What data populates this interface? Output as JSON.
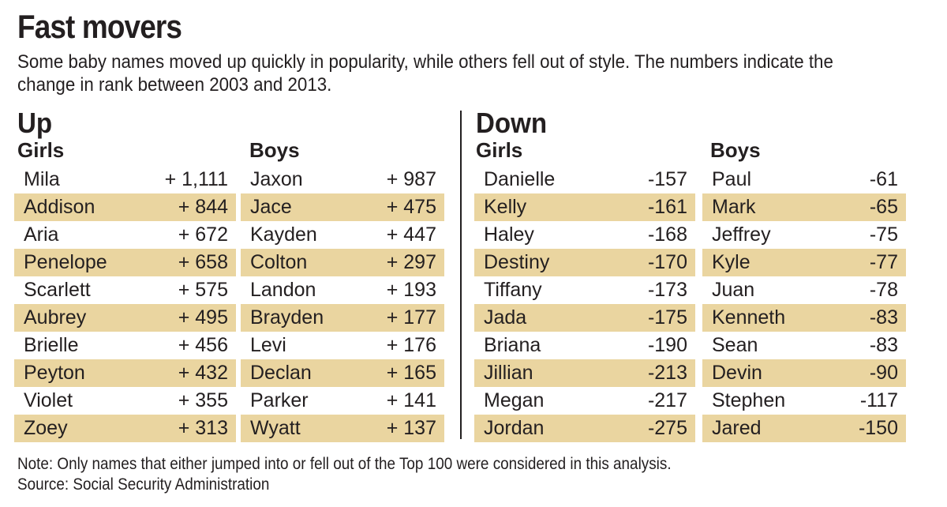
{
  "title": "Fast movers",
  "subtitle": "Some baby names moved up quickly in popularity, while others fell out of style. The numbers indicate the change in rank between 2003 and 2013.",
  "up": {
    "label": "Up",
    "girls": {
      "label": "Girls",
      "rows": [
        {
          "name": "Mila",
          "change": "+ 1,111"
        },
        {
          "name": "Addison",
          "change": "+ 844"
        },
        {
          "name": "Aria",
          "change": "+ 672"
        },
        {
          "name": "Penelope",
          "change": "+ 658"
        },
        {
          "name": "Scarlett",
          "change": "+ 575"
        },
        {
          "name": "Aubrey",
          "change": "+ 495"
        },
        {
          "name": "Brielle",
          "change": "+ 456"
        },
        {
          "name": "Peyton",
          "change": "+ 432"
        },
        {
          "name": "Violet",
          "change": "+ 355"
        },
        {
          "name": "Zoey",
          "change": "+ 313"
        }
      ]
    },
    "boys": {
      "label": "Boys",
      "rows": [
        {
          "name": "Jaxon",
          "change": "+ 987"
        },
        {
          "name": "Jace",
          "change": "+ 475"
        },
        {
          "name": "Kayden",
          "change": "+ 447"
        },
        {
          "name": "Colton",
          "change": "+ 297"
        },
        {
          "name": "Landon",
          "change": "+ 193"
        },
        {
          "name": "Brayden",
          "change": "+ 177"
        },
        {
          "name": "Levi",
          "change": "+ 176"
        },
        {
          "name": "Declan",
          "change": "+ 165"
        },
        {
          "name": "Parker",
          "change": "+ 141"
        },
        {
          "name": "Wyatt",
          "change": "+ 137"
        }
      ]
    }
  },
  "down": {
    "label": "Down",
    "girls": {
      "label": "Girls",
      "rows": [
        {
          "name": "Danielle",
          "change": "-157"
        },
        {
          "name": "Kelly",
          "change": "-161"
        },
        {
          "name": "Haley",
          "change": "-168"
        },
        {
          "name": "Destiny",
          "change": "-170"
        },
        {
          "name": "Tiffany",
          "change": "-173"
        },
        {
          "name": "Jada",
          "change": "-175"
        },
        {
          "name": "Briana",
          "change": "-190"
        },
        {
          "name": "Jillian",
          "change": "-213"
        },
        {
          "name": "Megan",
          "change": "-217"
        },
        {
          "name": "Jordan",
          "change": "-275"
        }
      ]
    },
    "boys": {
      "label": "Boys",
      "rows": [
        {
          "name": "Paul",
          "change": "-61"
        },
        {
          "name": "Mark",
          "change": "-65"
        },
        {
          "name": "Jeffrey",
          "change": "-75"
        },
        {
          "name": "Kyle",
          "change": "-77"
        },
        {
          "name": "Juan",
          "change": "-78"
        },
        {
          "name": "Kenneth",
          "change": "-83"
        },
        {
          "name": "Sean",
          "change": "-83"
        },
        {
          "name": "Devin",
          "change": "-90"
        },
        {
          "name": "Stephen",
          "change": "-117"
        },
        {
          "name": "Jared",
          "change": "-150"
        }
      ]
    }
  },
  "note": "Note: Only names that either jumped into or fell out of the Top 100 were considered in this analysis.",
  "source": "Source: Social Security Administration",
  "colors": {
    "stripe": "#ead5a0",
    "text": "#231f20"
  },
  "chart_data": {
    "type": "table",
    "title": "Fast movers",
    "subtitle": "Change in rank between 2003 and 2013",
    "columns": [
      "Up - Girls",
      "Up - Boys",
      "Down - Girls",
      "Down - Boys"
    ],
    "series": [
      {
        "name": "Up - Girls",
        "categories": [
          "Mila",
          "Addison",
          "Aria",
          "Penelope",
          "Scarlett",
          "Aubrey",
          "Brielle",
          "Peyton",
          "Violet",
          "Zoey"
        ],
        "values": [
          1111,
          844,
          672,
          658,
          575,
          495,
          456,
          432,
          355,
          313
        ]
      },
      {
        "name": "Up - Boys",
        "categories": [
          "Jaxon",
          "Jace",
          "Kayden",
          "Colton",
          "Landon",
          "Brayden",
          "Levi",
          "Declan",
          "Parker",
          "Wyatt"
        ],
        "values": [
          987,
          475,
          447,
          297,
          193,
          177,
          176,
          165,
          141,
          137
        ]
      },
      {
        "name": "Down - Girls",
        "categories": [
          "Danielle",
          "Kelly",
          "Haley",
          "Destiny",
          "Tiffany",
          "Jada",
          "Briana",
          "Jillian",
          "Megan",
          "Jordan"
        ],
        "values": [
          -157,
          -161,
          -168,
          -170,
          -173,
          -175,
          -190,
          -213,
          -217,
          -275
        ]
      },
      {
        "name": "Down - Boys",
        "categories": [
          "Paul",
          "Mark",
          "Jeffrey",
          "Kyle",
          "Juan",
          "Kenneth",
          "Sean",
          "Devin",
          "Stephen",
          "Jared"
        ],
        "values": [
          -61,
          -65,
          -75,
          -77,
          -78,
          -83,
          -83,
          -90,
          -117,
          -150
        ]
      }
    ],
    "source": "Social Security Administration"
  }
}
